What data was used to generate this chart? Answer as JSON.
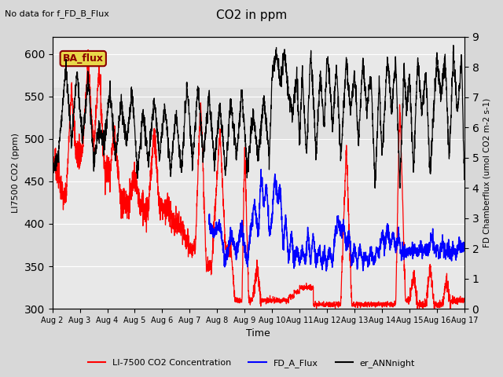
{
  "title": "CO2 in ppm",
  "top_left_text": "No data for f_FD_B_Flux",
  "box_label": "BA_flux",
  "ylabel_left": "LI7500 CO2 (ppm)",
  "ylabel_right": "FD Chamberflux (umol CO2 m-2 s-1)",
  "xlabel": "Time",
  "ylim_left": [
    300,
    620
  ],
  "ylim_right": [
    0.0,
    9.0
  ],
  "yticks_left": [
    300,
    350,
    400,
    450,
    500,
    550,
    600
  ],
  "yticks_right": [
    0.0,
    1.0,
    2.0,
    3.0,
    4.0,
    5.0,
    6.0,
    7.0,
    8.0,
    9.0
  ],
  "xdate_labels": [
    "Aug 2",
    "Aug 3",
    "Aug 4",
    "Aug 5",
    "Aug 6",
    "Aug 7",
    "Aug 8",
    "Aug 9",
    "Aug 10",
    "Aug 11",
    "Aug 12",
    "Aug 13",
    "Aug 14",
    "Aug 15",
    "Aug 16",
    "Aug 17"
  ],
  "legend_entries": [
    {
      "label": "LI-7500 CO2 Concentration",
      "color": "red"
    },
    {
      "label": "FD_A_Flux",
      "color": "blue"
    },
    {
      "label": "er_ANNnight",
      "color": "black"
    }
  ],
  "shaded_band": [
    500,
    560
  ],
  "bg_color": "#d8d8d8",
  "plot_bg_color": "#e8e8e8"
}
